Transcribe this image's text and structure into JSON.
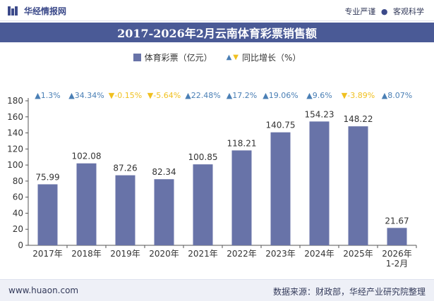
{
  "brand": {
    "name": "华经情报网",
    "tags": [
      "专业严谨",
      "客观科学"
    ]
  },
  "legend": {
    "bar_label": "体育彩票（亿元）",
    "yoy_label": "同比增长（%）"
  },
  "footer": {
    "url": "www.huaon.com",
    "source": "数据来源：财政部，华经产业研究院整理"
  },
  "colors": {
    "bar": "#6873a8",
    "title_bg": "#4a5a96",
    "up": "#4a7fb5",
    "down": "#f0c020",
    "text": "#333333"
  },
  "chart_data": {
    "type": "bar",
    "title": "2017-2026年2月云南体育彩票销售额",
    "categories": [
      "2017年",
      "2018年",
      "2019年",
      "2020年",
      "2021年",
      "2022年",
      "2023年",
      "2024年",
      "2025年",
      "2026年\n1-2月"
    ],
    "series": [
      {
        "name": "体育彩票（亿元）",
        "values": [
          75.99,
          102.08,
          87.26,
          82.34,
          100.85,
          118.21,
          140.75,
          154.23,
          148.22,
          21.67
        ]
      }
    ],
    "value_labels": [
      "75.99",
      "102.08",
      "87.26",
      "82.34",
      "100.85",
      "118.21",
      "140.75",
      "154.23",
      "148.22",
      "21.67"
    ],
    "yoy": {
      "name": "同比增长（%）",
      "values": [
        1.3,
        34.34,
        -0.15,
        -5.64,
        22.48,
        17.2,
        19.06,
        9.6,
        -3.89,
        8.07
      ],
      "labels": [
        "1.3%",
        "34.34%",
        "-0.15%",
        "-5.64%",
        "22.48%",
        "17.2%",
        "19.06%",
        "9.6%",
        "-3.89%",
        "8.07%"
      ]
    },
    "ylim": [
      0,
      180
    ],
    "yticks": [
      0,
      20,
      40,
      60,
      80,
      100,
      120,
      140,
      160,
      180
    ],
    "grid": false,
    "legend_position": "top-center"
  }
}
